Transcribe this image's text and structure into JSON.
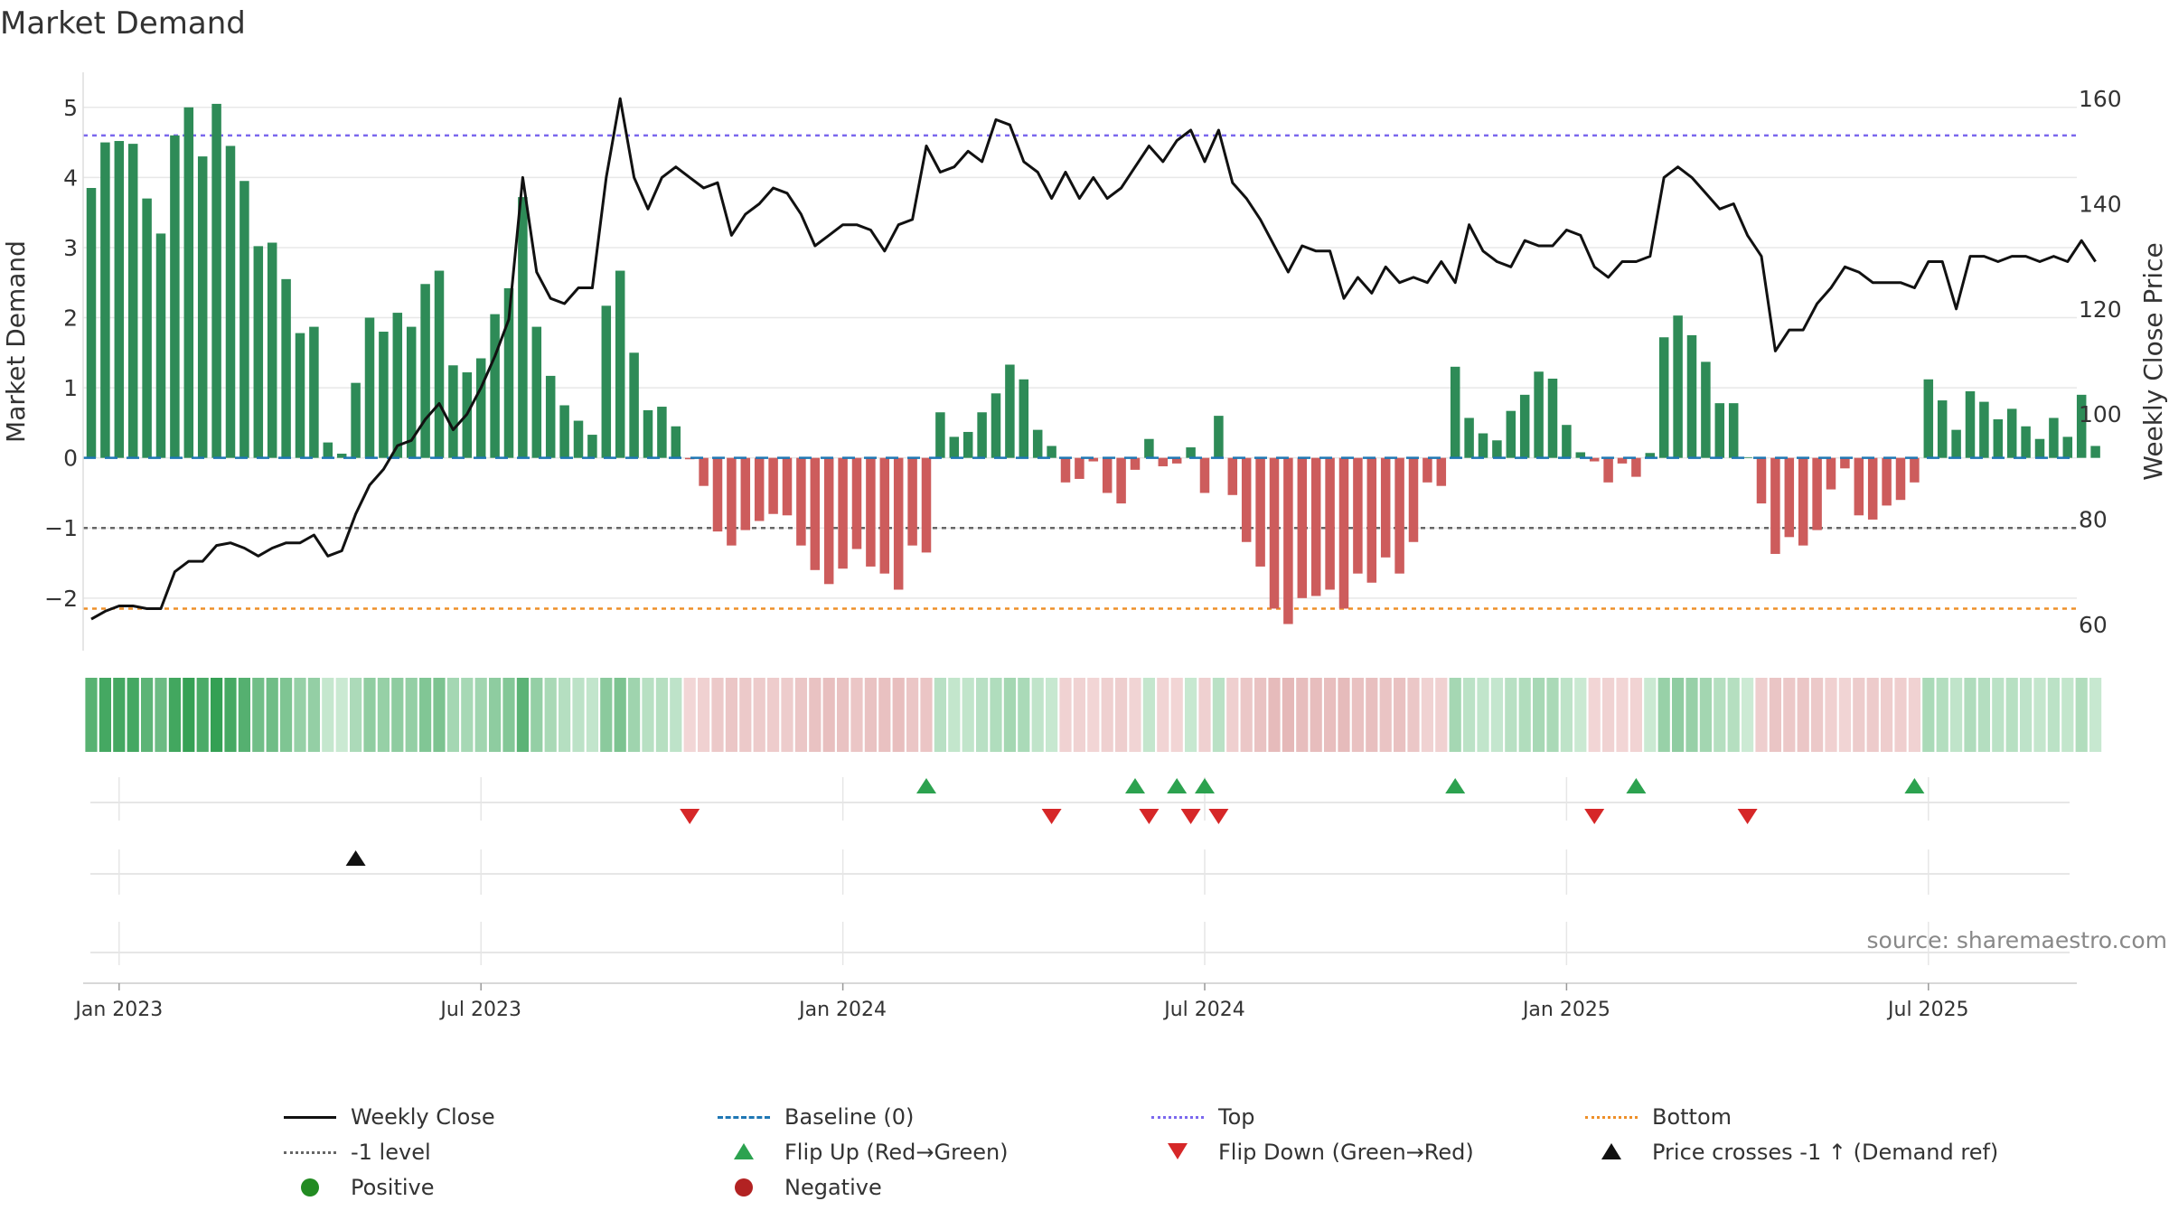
{
  "chart_data": {
    "type": "bar",
    "title": "Market Demand",
    "ylabel": "Market Demand",
    "y2label": "Weekly Close Price",
    "ylim": [
      -2.75,
      5.5
    ],
    "y2lim": [
      55,
      165
    ],
    "yticks": [
      5,
      4,
      3,
      2,
      1,
      0,
      -1,
      -2
    ],
    "ytick_labels": [
      "5",
      "4",
      "3",
      "2",
      "1",
      "0",
      "−1",
      "−2"
    ],
    "y2ticks": [
      160,
      140,
      120,
      100,
      80,
      60
    ],
    "y2tick_labels": [
      "160",
      "140",
      "120",
      "100",
      "80",
      "60"
    ],
    "xticks": [
      {
        "label": "Jan 2023",
        "week": 2
      },
      {
        "label": "Jul 2023",
        "week": 28
      },
      {
        "label": "Jan 2024",
        "week": 54
      },
      {
        "label": "Jul 2024",
        "week": 80
      },
      {
        "label": "Jan 2025",
        "week": 106
      },
      {
        "label": "Jul 2025",
        "week": 132
      }
    ],
    "start_week": "2022-12-19",
    "demand": [
      3.85,
      4.5,
      4.52,
      4.48,
      3.7,
      3.2,
      4.6,
      5.0,
      4.3,
      5.05,
      4.45,
      3.95,
      3.02,
      3.07,
      2.55,
      1.78,
      1.87,
      0.22,
      0.06,
      1.07,
      2.0,
      1.8,
      2.07,
      1.87,
      2.48,
      2.67,
      1.32,
      1.22,
      1.42,
      2.05,
      2.42,
      3.72,
      1.87,
      1.17,
      0.75,
      0.53,
      0.33,
      2.17,
      2.67,
      1.5,
      0.68,
      0.73,
      0.45,
      -0.02,
      -0.4,
      -1.05,
      -1.25,
      -1.03,
      -0.9,
      -0.8,
      -0.82,
      -1.25,
      -1.6,
      -1.8,
      -1.58,
      -1.3,
      -1.55,
      -1.65,
      -1.88,
      -1.25,
      -1.35,
      0.65,
      0.3,
      0.37,
      0.65,
      0.92,
      1.33,
      1.12,
      0.4,
      0.17,
      -0.35,
      -0.3,
      -0.05,
      -0.5,
      -0.65,
      -0.17,
      0.27,
      -0.12,
      -0.08,
      0.15,
      -0.5,
      0.6,
      -0.53,
      -1.2,
      -1.55,
      -2.15,
      -2.37,
      -2.0,
      -1.97,
      -1.88,
      -2.15,
      -1.65,
      -1.78,
      -1.42,
      -1.65,
      -1.2,
      -0.35,
      -0.4,
      1.3,
      0.57,
      0.35,
      0.25,
      0.67,
      0.9,
      1.23,
      1.13,
      0.47,
      0.08,
      -0.05,
      -0.35,
      -0.08,
      -0.27,
      0.07,
      1.72,
      2.03,
      1.75,
      1.37,
      0.78,
      0.78,
      0.01,
      -0.65,
      -1.37,
      -1.13,
      -1.25,
      -1.03,
      -0.45,
      -0.15,
      -0.82,
      -0.88,
      -0.68,
      -0.6,
      -0.35,
      1.12,
      0.82,
      0.4,
      0.95,
      0.8,
      0.55,
      0.7,
      0.45,
      0.27,
      0.57,
      0.3,
      0.9,
      0.17
    ],
    "close": [
      61,
      62.5,
      63.5,
      63.5,
      63,
      63,
      70,
      72,
      72,
      75,
      75.5,
      74.5,
      73,
      74.5,
      75.5,
      75.5,
      77,
      73,
      74,
      81,
      86.5,
      89.5,
      94,
      95,
      99,
      102,
      97,
      100,
      105,
      111,
      118,
      145,
      127,
      122,
      121,
      124,
      124,
      145,
      160,
      145,
      139,
      145,
      147,
      145,
      143,
      144,
      134,
      138,
      140,
      143,
      142,
      138,
      132,
      134,
      136,
      136,
      135,
      131,
      136,
      137,
      151,
      146,
      147,
      150,
      148,
      156,
      155,
      148,
      146,
      141,
      146,
      141,
      145,
      141,
      143,
      147,
      151,
      148,
      152,
      154,
      148,
      154,
      144,
      141,
      137,
      132,
      127,
      132,
      131,
      131,
      122,
      126,
      123,
      128,
      125,
      126,
      125,
      129,
      125,
      136,
      131,
      129,
      128,
      133,
      132,
      132,
      135,
      134,
      128,
      126,
      129,
      129,
      130,
      145,
      147,
      145,
      142,
      139,
      140,
      134,
      130,
      112,
      116,
      116,
      121,
      124,
      128,
      127,
      125,
      125,
      125,
      124,
      129,
      129,
      120,
      130,
      130,
      129,
      130,
      130,
      129,
      130,
      129,
      133,
      129
    ],
    "levels": {
      "top": 4.6,
      "baseline": 0,
      "minus1": -1,
      "bottom": -2.15
    },
    "flip_up_weeks": [
      60,
      75,
      78,
      80,
      98,
      111,
      131
    ],
    "flip_down_weeks": [
      43,
      69,
      76,
      79,
      81,
      108,
      119
    ],
    "price_cross_weeks": [
      19
    ],
    "legend": [
      {
        "label": "Weekly Close",
        "symbol": "line-solid",
        "color": "#111111"
      },
      {
        "label": "Baseline (0)",
        "symbol": "line-dashed",
        "color": "#1f77b4"
      },
      {
        "label": "Top",
        "symbol": "line-dotted",
        "color": "#7b68ee"
      },
      {
        "label": "Bottom",
        "symbol": "line-dotted",
        "color": "#ee8f28"
      },
      {
        "label": "-1 level",
        "symbol": "line-dotted",
        "color": "#666666"
      },
      {
        "label": "Flip Up (Red→Green)",
        "symbol": "triangle-up",
        "color": "#2ca24f"
      },
      {
        "label": "Flip Down (Green→Red)",
        "symbol": "triangle-down",
        "color": "#d62728"
      },
      {
        "label": "Price crosses -1 ↑ (Demand ref)",
        "symbol": "triangle-up",
        "color": "#111111"
      },
      {
        "label": "Positive",
        "symbol": "dot",
        "color": "#228b22"
      },
      {
        "label": "Negative",
        "symbol": "dot",
        "color": "#b22222"
      }
    ],
    "source": "source: sharemaestro.com"
  },
  "colors": {
    "bar_positive": "#2e8b57",
    "bar_negative": "#cd5c5c",
    "grid": "#e8e8e8",
    "axis": "#cccccc",
    "line": "#111111"
  }
}
